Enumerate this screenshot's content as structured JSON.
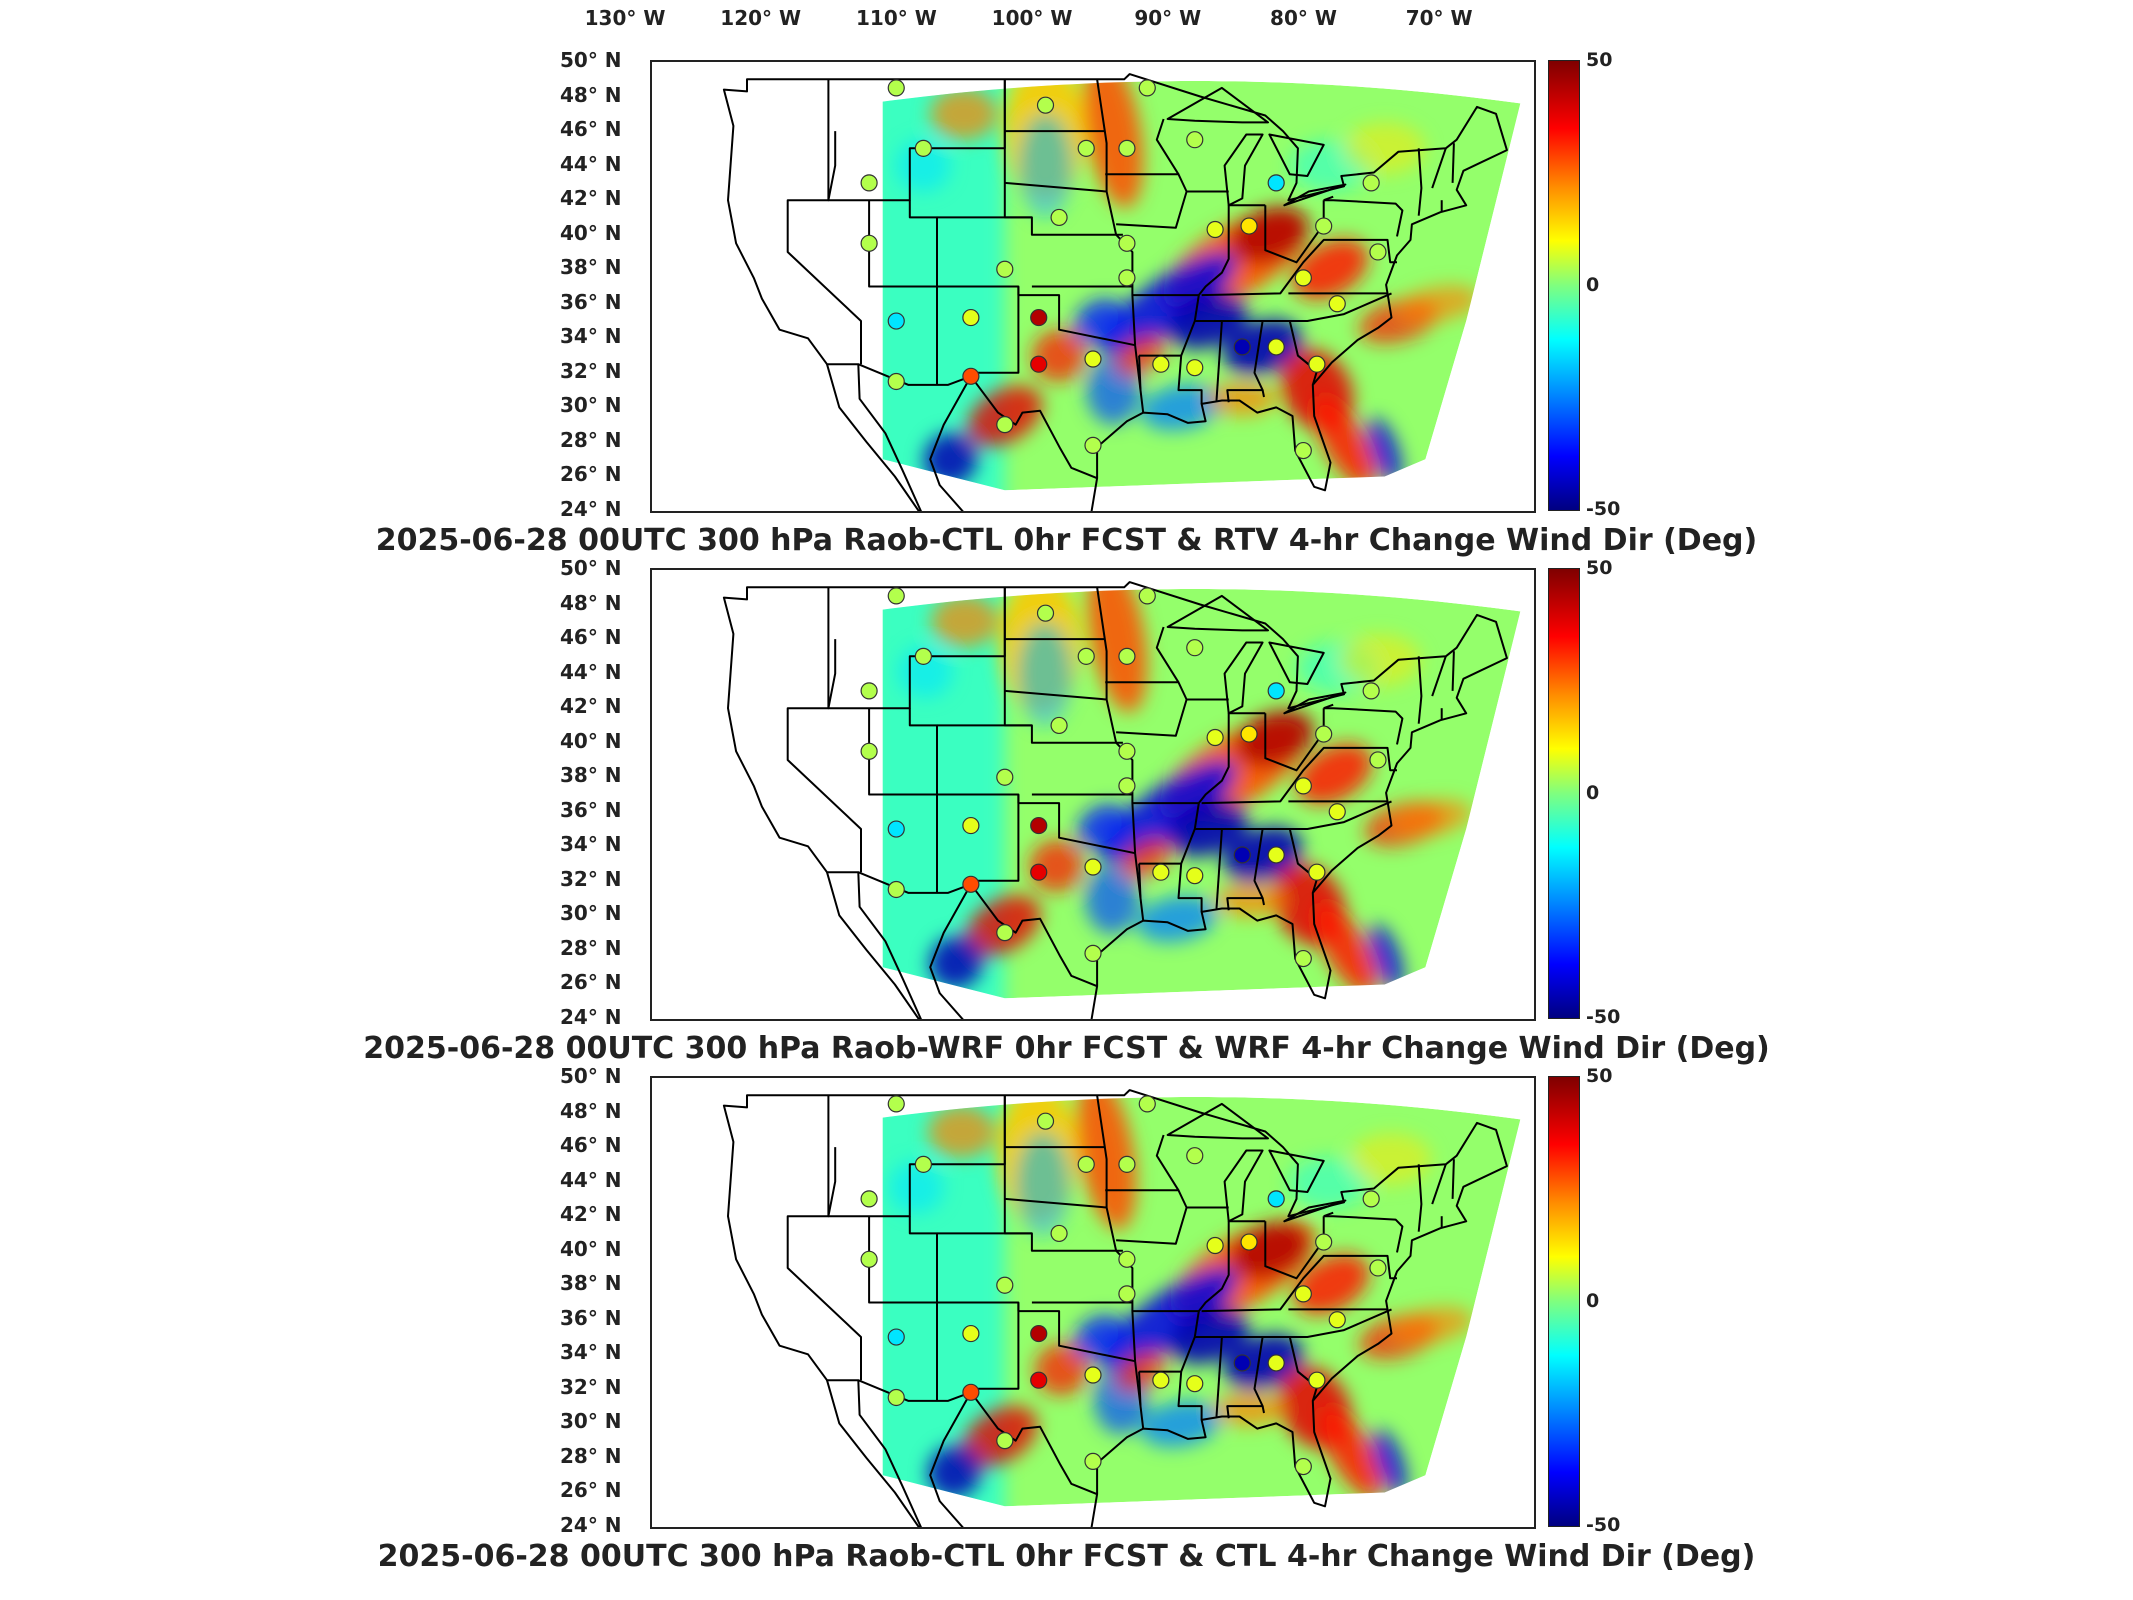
{
  "lon_labels": [
    "130° W",
    "120° W",
    "110° W",
    "100° W",
    "90° W",
    "80° W",
    "70° W"
  ],
  "lat_labels": [
    "50° N",
    "48° N",
    "46° N",
    "44° N",
    "42° N",
    "40° N",
    "38° N",
    "36° N",
    "34° N",
    "32° N",
    "30° N",
    "28° N",
    "26° N",
    "24° N"
  ],
  "colorbar": {
    "max": "50",
    "mid": "0",
    "min": "-50",
    "colormap": "jet"
  },
  "panels": [
    {
      "title": "2025-06-28 00UTC 300 hPa Raob-CTL 0hr FCST & RTV 4-hr Change Wind Dir (Deg)"
    },
    {
      "title": "2025-06-28 00UTC 300 hPa Raob-WRF 0hr FCST & WRF 4-hr Change Wind Dir (Deg)"
    },
    {
      "title": "2025-06-28 00UTC 300 hPa Raob-CTL 0hr FCST & CTL 4-hr Change Wind Dir (Deg)"
    }
  ],
  "chart_data": {
    "type": "heatmap",
    "x_range_lon": [
      -130,
      -65
    ],
    "y_range_lat": [
      24,
      50
    ],
    "clim": [
      -50,
      50
    ],
    "station_markers_note": "circles over raob stations colored by difference",
    "stations": [
      {
        "lon": -112,
        "lat": 48.5,
        "v": 5
      },
      {
        "lon": -101,
        "lat": 47.5,
        "v": 5
      },
      {
        "lon": -93.5,
        "lat": 48.5,
        "v": 5
      },
      {
        "lon": -110,
        "lat": 45,
        "v": 5
      },
      {
        "lon": -98,
        "lat": 45,
        "v": 5
      },
      {
        "lon": -95,
        "lat": 45,
        "v": 5
      },
      {
        "lon": -114,
        "lat": 43,
        "v": 5
      },
      {
        "lon": -90,
        "lat": 45.5,
        "v": 5
      },
      {
        "lon": -84,
        "lat": 43,
        "v": -15
      },
      {
        "lon": -77,
        "lat": 43,
        "v": 5
      },
      {
        "lon": -114,
        "lat": 39.5,
        "v": 5
      },
      {
        "lon": -100,
        "lat": 41,
        "v": 5
      },
      {
        "lon": -95,
        "lat": 39.5,
        "v": 5
      },
      {
        "lon": -104,
        "lat": 38,
        "v": 5
      },
      {
        "lon": -88.5,
        "lat": 40.3,
        "v": 10
      },
      {
        "lon": -86,
        "lat": 40.5,
        "v": 15
      },
      {
        "lon": -80.5,
        "lat": 40.5,
        "v": 5
      },
      {
        "lon": -76.5,
        "lat": 39,
        "v": 5
      },
      {
        "lon": -95,
        "lat": 37.5,
        "v": 5
      },
      {
        "lon": -82,
        "lat": 37.5,
        "v": 10
      },
      {
        "lon": -112,
        "lat": 35,
        "v": -15
      },
      {
        "lon": -106.5,
        "lat": 35.2,
        "v": 10
      },
      {
        "lon": -101.5,
        "lat": 35.2,
        "v": 45
      },
      {
        "lon": -79.5,
        "lat": 36,
        "v": 10
      },
      {
        "lon": -101.5,
        "lat": 32.5,
        "v": 40
      },
      {
        "lon": -106.5,
        "lat": 31.8,
        "v": 30
      },
      {
        "lon": -97.5,
        "lat": 32.8,
        "v": 10
      },
      {
        "lon": -92.5,
        "lat": 32.5,
        "v": 10
      },
      {
        "lon": -90,
        "lat": 32.3,
        "v": 10
      },
      {
        "lon": -86.5,
        "lat": 33.5,
        "v": -45
      },
      {
        "lon": -84,
        "lat": 33.5,
        "v": 10
      },
      {
        "lon": -81,
        "lat": 32.5,
        "v": 10
      },
      {
        "lon": -112,
        "lat": 31.5,
        "v": 5
      },
      {
        "lon": -104,
        "lat": 29,
        "v": 5
      },
      {
        "lon": -97.5,
        "lat": 27.8,
        "v": 5
      },
      {
        "lon": -82,
        "lat": 27.5,
        "v": 5
      }
    ]
  }
}
